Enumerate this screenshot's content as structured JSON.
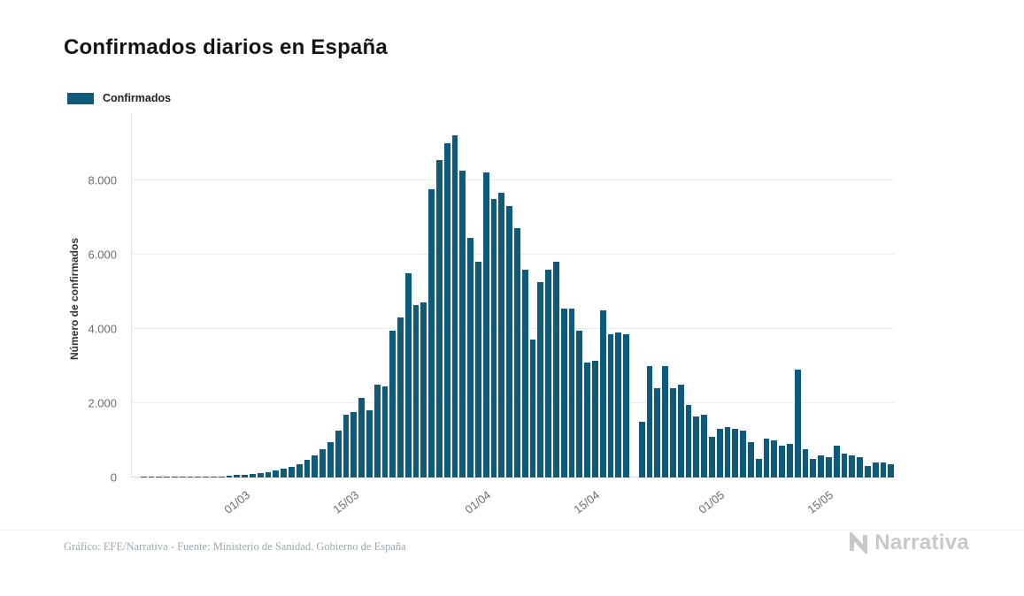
{
  "title": "Confirmados diarios en España",
  "legend": {
    "label": "Confirmados",
    "color": "#0e5a7d"
  },
  "y_axis": {
    "label": "Número de confirmados",
    "ticks": [
      "0",
      "2.000",
      "4.000",
      "6.000",
      "8.000"
    ],
    "tick_values": [
      0,
      2000,
      4000,
      6000,
      8000
    ]
  },
  "x_axis": {
    "ticks": [
      "01/03",
      "15/03",
      "01/04",
      "15/04",
      "01/05",
      "15/05"
    ]
  },
  "footer": {
    "credit": "Gráfico: EFE/Narrativa - Fuente: Ministerio de Sanidad. Gobierno de España",
    "brand": "Narrativa"
  },
  "chart_data": {
    "type": "bar",
    "title": "Confirmados diarios en España",
    "xlabel": "",
    "ylabel": "Número de confirmados",
    "ylim": [
      0,
      9800
    ],
    "grid": true,
    "legend_entries": [
      "Confirmados"
    ],
    "legend_position": "top-left",
    "bar_color": "#0e5a7d",
    "categories": [
      "16/02",
      "17/02",
      "18/02",
      "19/02",
      "20/02",
      "21/02",
      "22/02",
      "23/02",
      "24/02",
      "25/02",
      "26/02",
      "27/02",
      "28/02",
      "29/02",
      "01/03",
      "02/03",
      "03/03",
      "04/03",
      "05/03",
      "06/03",
      "07/03",
      "08/03",
      "09/03",
      "10/03",
      "11/03",
      "12/03",
      "13/03",
      "14/03",
      "15/03",
      "16/03",
      "17/03",
      "18/03",
      "19/03",
      "20/03",
      "21/03",
      "22/03",
      "23/03",
      "24/03",
      "25/03",
      "26/03",
      "27/03",
      "28/03",
      "29/03",
      "30/03",
      "31/03",
      "01/04",
      "02/04",
      "03/04",
      "04/04",
      "05/04",
      "06/04",
      "07/04",
      "08/04",
      "09/04",
      "10/04",
      "11/04",
      "12/04",
      "13/04",
      "14/04",
      "15/04",
      "16/04",
      "17/04",
      "18/04",
      "19/04",
      "20/04",
      "21/04",
      "22/04",
      "23/04",
      "24/04",
      "25/04",
      "26/04",
      "27/04",
      "28/04",
      "29/04",
      "30/04",
      "01/05",
      "02/05",
      "03/05",
      "04/05",
      "05/05",
      "06/05",
      "07/05",
      "08/05",
      "09/05",
      "10/05",
      "11/05",
      "12/05",
      "13/05",
      "14/05",
      "15/05",
      "16/05",
      "17/05",
      "18/05",
      "19/05",
      "20/05",
      "21/05",
      "22/05",
      "23/05"
    ],
    "values": [
      0,
      1,
      1,
      2,
      2,
      3,
      4,
      6,
      10,
      15,
      22,
      30,
      45,
      60,
      75,
      95,
      115,
      145,
      185,
      230,
      285,
      350,
      480,
      600,
      750,
      950,
      1250,
      1700,
      1750,
      2150,
      1800,
      2500,
      2450,
      3950,
      4300,
      5500,
      4650,
      4700,
      7750,
      8550,
      9000,
      9200,
      8250,
      6450,
      5800,
      8200,
      7500,
      7650,
      7300,
      6700,
      5600,
      3700,
      5250,
      5600,
      5800,
      4550,
      4550,
      3950,
      3100,
      3150,
      4500,
      3850,
      3900,
      3850,
      0,
      1500,
      3000,
      2400,
      3000,
      2400,
      2500,
      1950,
      1650,
      1700,
      1100,
      1300,
      1350,
      1300,
      1250,
      950,
      500,
      1050,
      1000,
      850,
      900,
      2900,
      750,
      500,
      600,
      550,
      850,
      650,
      600,
      550,
      300,
      400,
      400,
      350
    ]
  }
}
